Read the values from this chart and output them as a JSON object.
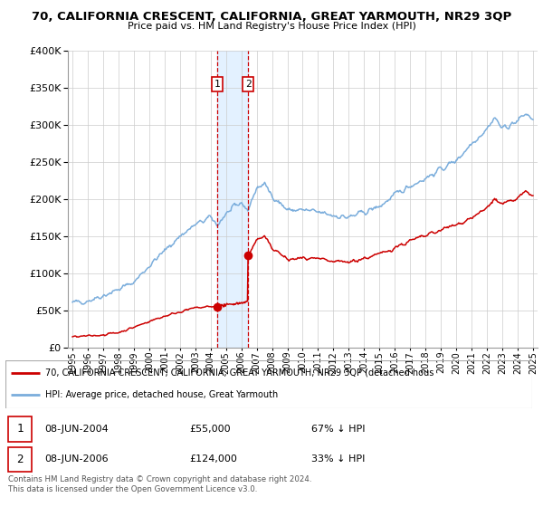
{
  "title": "70, CALIFORNIA CRESCENT, CALIFORNIA, GREAT YARMOUTH, NR29 3QP",
  "subtitle": "Price paid vs. HM Land Registry's House Price Index (HPI)",
  "sale1_date": 2004.44,
  "sale1_price": 55000,
  "sale2_date": 2006.44,
  "sale2_price": 124000,
  "sale1_display": "08-JUN-2004",
  "sale2_display": "08-JUN-2006",
  "sale1_hpi_pct": "67% ↓ HPI",
  "sale2_hpi_pct": "33% ↓ HPI",
  "hpi_color": "#7aaddc",
  "price_color": "#cc0000",
  "shade_color": "#ddeeff",
  "vline_color": "#cc0000",
  "legend_line1": "70, CALIFORNIA CRESCENT, CALIFORNIA, GREAT YARMOUTH, NR29 3QP (detached hous",
  "legend_line2": "HPI: Average price, detached house, Great Yarmouth",
  "footer": "Contains HM Land Registry data © Crown copyright and database right 2024.\nThis data is licensed under the Open Government Licence v3.0.",
  "ylim": [
    0,
    400000
  ],
  "yticks": [
    0,
    50000,
    100000,
    150000,
    200000,
    250000,
    300000,
    350000,
    400000
  ],
  "xstart": 1995,
  "xend": 2025,
  "hpi_knots_x": [
    1995,
    1996,
    1997,
    1998,
    1999,
    2000,
    2001,
    2002,
    2003,
    2004,
    2004.44,
    2005,
    2006,
    2006.44,
    2007,
    2007.5,
    2008,
    2009,
    2010,
    2011,
    2012,
    2013,
    2014,
    2015,
    2016,
    2017,
    2018,
    2019,
    2020,
    2021,
    2021.5,
    2022,
    2022.5,
    2023,
    2024,
    2024.5,
    2025
  ],
  "hpi_knots_y": [
    60000,
    63000,
    70000,
    78000,
    88000,
    110000,
    130000,
    150000,
    165000,
    175000,
    165000,
    180000,
    195000,
    185000,
    215000,
    220000,
    205000,
    185000,
    185000,
    182000,
    178000,
    175000,
    182000,
    190000,
    205000,
    218000,
    228000,
    240000,
    252000,
    275000,
    285000,
    295000,
    310000,
    295000,
    305000,
    315000,
    308000
  ],
  "red_knots_x": [
    1995,
    1996,
    1997,
    1998,
    1999,
    2000,
    2001,
    2002,
    2003,
    2004,
    2004.44
  ],
  "red_knots_y": [
    14000,
    15000,
    17000,
    20000,
    27000,
    35000,
    42000,
    48000,
    53000,
    55000,
    55000
  ],
  "red2_knots_x": [
    2006.44,
    2007,
    2007.5,
    2008,
    2009,
    2010,
    2011,
    2012,
    2013,
    2014,
    2015,
    2016,
    2017,
    2018,
    2019,
    2020,
    2021,
    2021.5,
    2022,
    2022.5,
    2023,
    2024,
    2024.5,
    2025
  ],
  "red2_knots_y": [
    124000,
    145000,
    148000,
    135000,
    118000,
    120000,
    118000,
    115000,
    115000,
    120000,
    125000,
    135000,
    143000,
    150000,
    158000,
    165000,
    175000,
    180000,
    188000,
    200000,
    192000,
    200000,
    210000,
    205000
  ]
}
